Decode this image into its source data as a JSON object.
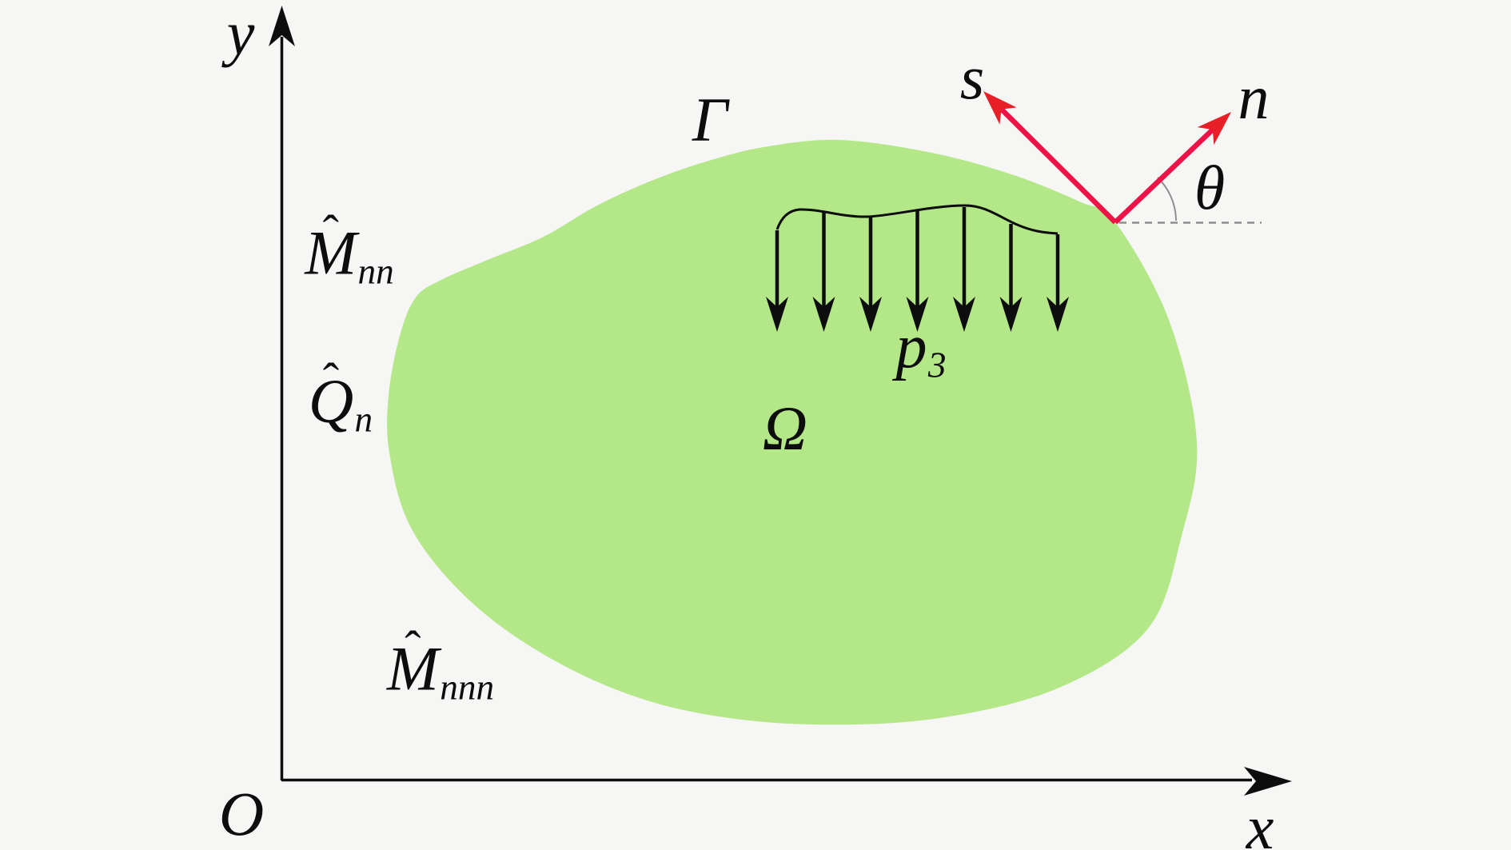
{
  "figure": {
    "background_color": "#f6f7f5",
    "domain_fill_color": "#b4e788",
    "vector_color": "#ee1347",
    "vector_head_color": "#e91f27",
    "ink_color": "#0d0d0d",
    "guide_color": "#8f8f8f"
  },
  "labels": {
    "y_axis": "y",
    "x_axis": "x",
    "origin": "O",
    "boundary": "Γ",
    "domain": "Ω",
    "load": {
      "base": "p",
      "sub": "3"
    },
    "tangent_vector": "s",
    "normal_vector": "n",
    "angle": "θ",
    "moment_nn": {
      "hat": "ˆ",
      "base": "M",
      "sub": "nn"
    },
    "shear_n": {
      "hat": "ˆ",
      "base": "Q",
      "sub": "n"
    },
    "moment_nnn": {
      "hat": "ˆ",
      "base": "M",
      "sub": "nnn"
    }
  }
}
